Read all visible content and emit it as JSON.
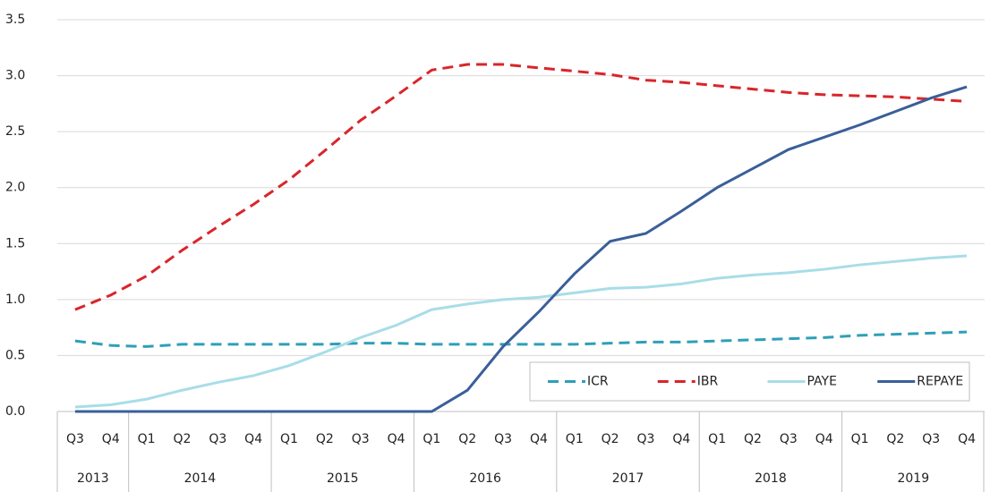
{
  "chart_data": {
    "type": "line",
    "categories": [
      "Q3",
      "Q4",
      "Q1",
      "Q2",
      "Q3",
      "Q4",
      "Q1",
      "Q2",
      "Q3",
      "Q4",
      "Q1",
      "Q2",
      "Q3",
      "Q4",
      "Q1",
      "Q2",
      "Q3",
      "Q4",
      "Q1",
      "Q2",
      "Q3",
      "Q4",
      "Q1",
      "Q2",
      "Q3",
      "Q4"
    ],
    "years": [
      "2013",
      null,
      "2014",
      null,
      null,
      null,
      "2015",
      null,
      null,
      null,
      "2016",
      null,
      null,
      null,
      "2017",
      null,
      null,
      null,
      "2018",
      null,
      null,
      null,
      "2019",
      null,
      null,
      null
    ],
    "series": [
      {
        "name": "ICR",
        "color": "#2e9fb8",
        "line_style": "dashed",
        "values": [
          0.63,
          0.59,
          0.58,
          0.6,
          0.6,
          0.6,
          0.6,
          0.6,
          0.61,
          0.61,
          0.6,
          0.6,
          0.6,
          0.6,
          0.6,
          0.61,
          0.62,
          0.62,
          0.63,
          0.64,
          0.65,
          0.66,
          0.68,
          0.69,
          0.7,
          0.71
        ]
      },
      {
        "name": "IBR",
        "color": "#d9252b",
        "line_style": "dashed",
        "values": [
          0.91,
          1.04,
          1.21,
          1.44,
          1.65,
          1.85,
          2.07,
          2.33,
          2.6,
          2.82,
          3.05,
          3.1,
          3.1,
          3.07,
          3.04,
          3.01,
          2.96,
          2.94,
          2.91,
          2.88,
          2.85,
          2.83,
          2.82,
          2.81,
          2.79,
          2.77
        ]
      },
      {
        "name": "PAYE",
        "color": "#a8dde8",
        "line_style": "solid",
        "values": [
          0.04,
          0.06,
          0.11,
          0.19,
          0.26,
          0.32,
          0.41,
          0.53,
          0.66,
          0.77,
          0.91,
          0.96,
          1.0,
          1.02,
          1.06,
          1.1,
          1.11,
          1.14,
          1.19,
          1.22,
          1.24,
          1.27,
          1.31,
          1.34,
          1.37,
          1.39
        ]
      },
      {
        "name": "REPAYE",
        "color": "#3a5f99",
        "line_style": "solid",
        "values": [
          0,
          0,
          0,
          0,
          0,
          0,
          0,
          0,
          0,
          0,
          0,
          0.19,
          0.58,
          0.89,
          1.23,
          1.52,
          1.59,
          1.79,
          2.0,
          2.17,
          2.34,
          2.45,
          2.56,
          2.68,
          2.8,
          2.9
        ]
      }
    ],
    "ylim": [
      0,
      3.5
    ],
    "yticks": [
      {
        "value": 0,
        "label": "0.0"
      },
      0.5,
      {
        "value": 1,
        "label": "1.0"
      },
      1.5,
      {
        "value": 2,
        "label": "2.0"
      },
      2.5,
      {
        "value": 3,
        "label": "3.0"
      },
      3.5
    ],
    "grid": true,
    "legend": "lower right"
  }
}
